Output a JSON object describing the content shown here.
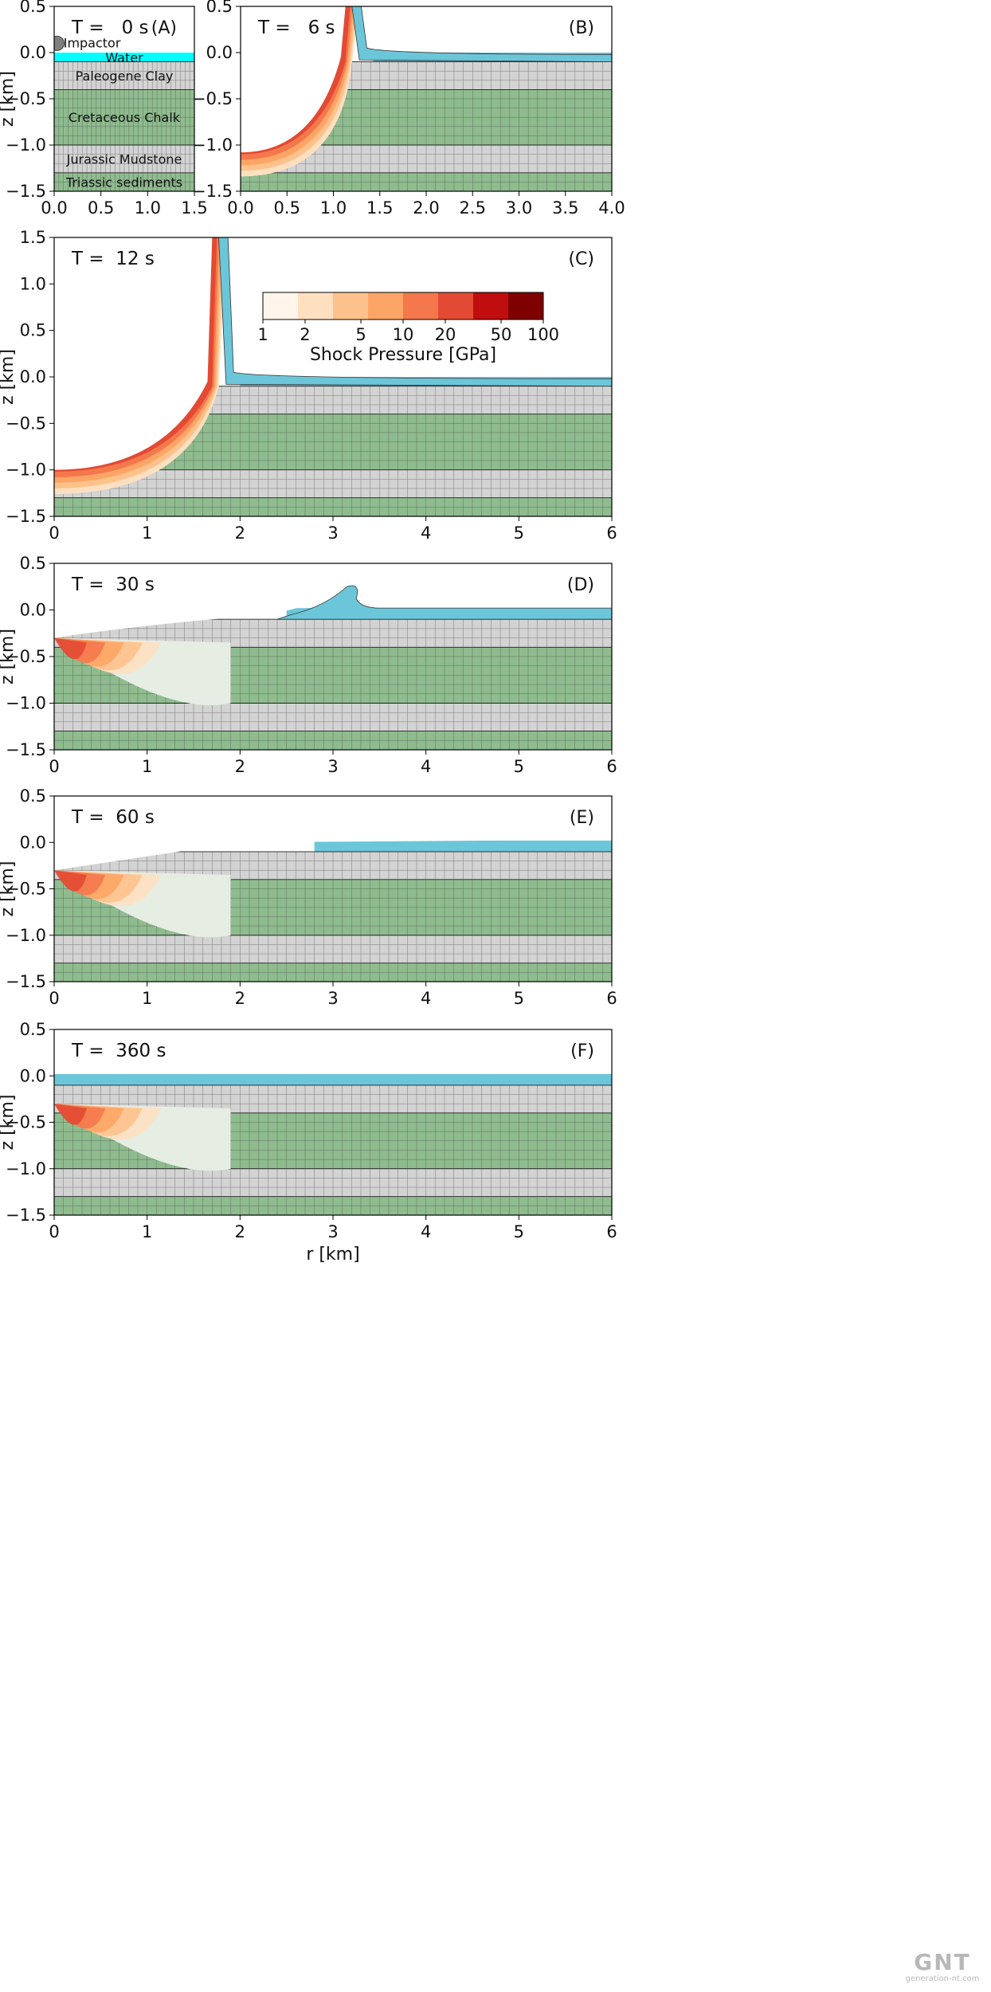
{
  "chart_data": {
    "type": "heatmap",
    "colors": {
      "water": "#6bc6d9",
      "water_initial": "#00ffff",
      "clay_mudstone": "#d3d3d3",
      "chalk_sediments": "#8fbc8f",
      "grid_line": "#333333"
    },
    "colorbar": {
      "label": "Shock Pressure [GPa]",
      "ticks": [
        "1",
        "2",
        "5",
        "10",
        "20",
        "50",
        "100"
      ],
      "colors": [
        "#fff5eb",
        "#fee0c1",
        "#fdc28c",
        "#fda566",
        "#f4784c",
        "#e34a33",
        "#c00d0d",
        "#7f0000"
      ]
    },
    "layers": [
      {
        "name": "Water",
        "top": 0.0,
        "bottom": -0.1
      },
      {
        "name": "Paleogene Clay",
        "top": -0.1,
        "bottom": -0.4
      },
      {
        "name": "Cretaceous Chalk",
        "top": -0.4,
        "bottom": -1.0
      },
      {
        "name": "Jurassic Mudstone",
        "top": -1.0,
        "bottom": -1.3
      },
      {
        "name": "Triassic sediments",
        "top": -1.3,
        "bottom": -1.5
      }
    ],
    "impactor_label": "Impactor",
    "panels": [
      {
        "id": "A",
        "label": "(A)",
        "time": "T =   0 s",
        "xlim": [
          0,
          1.5
        ],
        "ylim": [
          -1.5,
          0.5
        ],
        "xticks": [
          "0.0",
          "0.5",
          "1.0",
          "1.5"
        ],
        "yticks": [
          "0.5",
          "0.0",
          "-0.5",
          "-1.0",
          "-1.5"
        ],
        "ylabel": "z [km]",
        "xlabel": ""
      },
      {
        "id": "B",
        "label": "(B)",
        "time": "T =   6 s",
        "xlim": [
          0,
          4
        ],
        "ylim": [
          -1.5,
          0.5
        ],
        "xticks": [
          "0.0",
          "0.5",
          "1.0",
          "1.5",
          "2.0",
          "2.5",
          "3.0",
          "3.5",
          "4.0"
        ],
        "yticks": [
          "0.5",
          "0.0",
          "-0.5",
          "-1.0",
          "-1.5"
        ],
        "ylabel": "",
        "xlabel": ""
      },
      {
        "id": "C",
        "label": "(C)",
        "time": "T =  12 s",
        "xlim": [
          0,
          6
        ],
        "ylim": [
          -1.5,
          1.5
        ],
        "xticks": [
          "0",
          "1",
          "2",
          "3",
          "4",
          "5",
          "6"
        ],
        "yticks": [
          "1.5",
          "1.0",
          "0.5",
          "0.0",
          "-0.5",
          "-1.0",
          "-1.5"
        ],
        "ylabel": "z [km]",
        "xlabel": ""
      },
      {
        "id": "D",
        "label": "(D)",
        "time": "T =  30 s",
        "xlim": [
          0,
          6
        ],
        "ylim": [
          -1.5,
          0.5
        ],
        "xticks": [
          "0",
          "1",
          "2",
          "3",
          "4",
          "5",
          "6"
        ],
        "yticks": [
          "0.5",
          "0.0",
          "-0.5",
          "-1.0",
          "-1.5"
        ],
        "ylabel": "z [km]",
        "xlabel": ""
      },
      {
        "id": "E",
        "label": "(E)",
        "time": "T =  60 s",
        "xlim": [
          0,
          6
        ],
        "ylim": [
          -1.5,
          0.5
        ],
        "xticks": [
          "0",
          "1",
          "2",
          "3",
          "4",
          "5",
          "6"
        ],
        "yticks": [
          "0.5",
          "0.0",
          "-0.5",
          "-1.0",
          "-1.5"
        ],
        "ylabel": "z [km]",
        "xlabel": ""
      },
      {
        "id": "F",
        "label": "(F)",
        "time": "T =  360 s",
        "xlim": [
          0,
          6
        ],
        "ylim": [
          -1.5,
          0.5
        ],
        "xticks": [
          "0",
          "1",
          "2",
          "3",
          "4",
          "5",
          "6"
        ],
        "yticks": [
          "0.5",
          "0.0",
          "-0.5",
          "-1.0",
          "-1.5"
        ],
        "ylabel": "z [km]",
        "xlabel": "r [km]"
      }
    ]
  },
  "watermark": {
    "logo": "GNT",
    "site": "generation-nt.com"
  }
}
